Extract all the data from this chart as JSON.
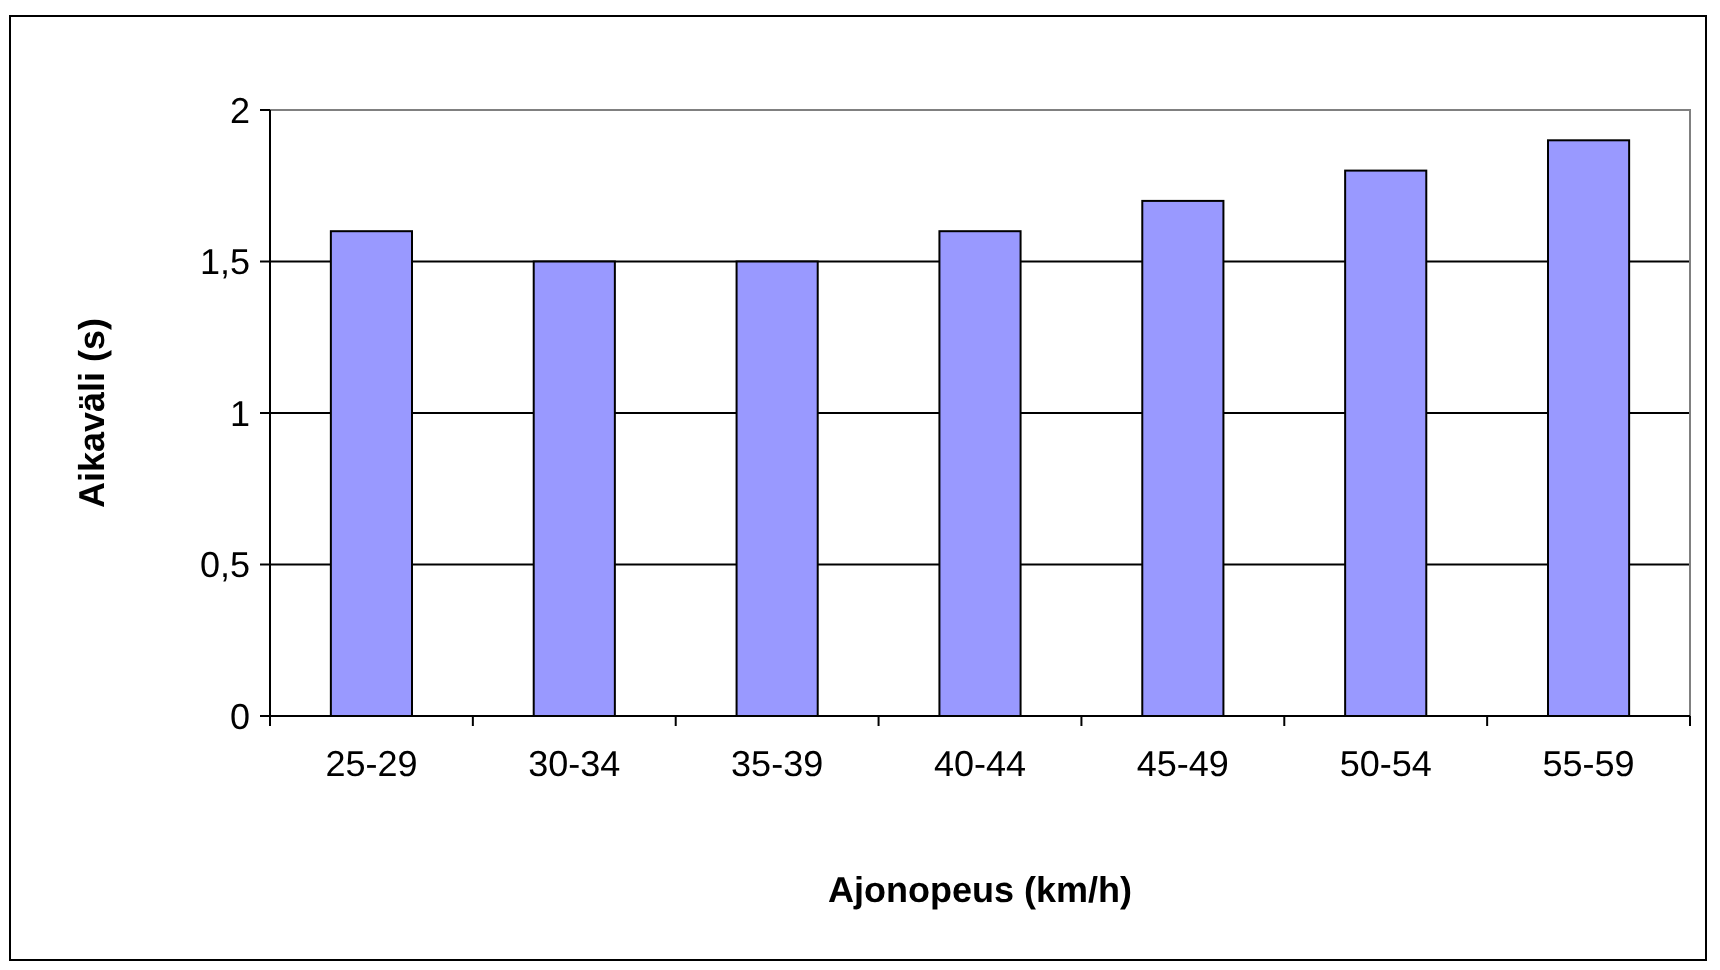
{
  "chart_data": {
    "type": "bar",
    "xlabel": "Ajonopeus (km/h)",
    "ylabel": "Aikaväli (s)",
    "categories": [
      "25-29",
      "30-34",
      "35-39",
      "40-44",
      "45-49",
      "50-54",
      "55-59"
    ],
    "values": [
      1.6,
      1.5,
      1.5,
      1.6,
      1.7,
      1.8,
      1.9
    ],
    "color": "#9999ff",
    "ylim": [
      0,
      2
    ],
    "yticks": [
      0,
      {
        "value": 0.5,
        "label": "0,5"
      },
      1,
      {
        "value": 1.5,
        "label": "1,5"
      },
      2
    ],
    "grid": "y"
  }
}
